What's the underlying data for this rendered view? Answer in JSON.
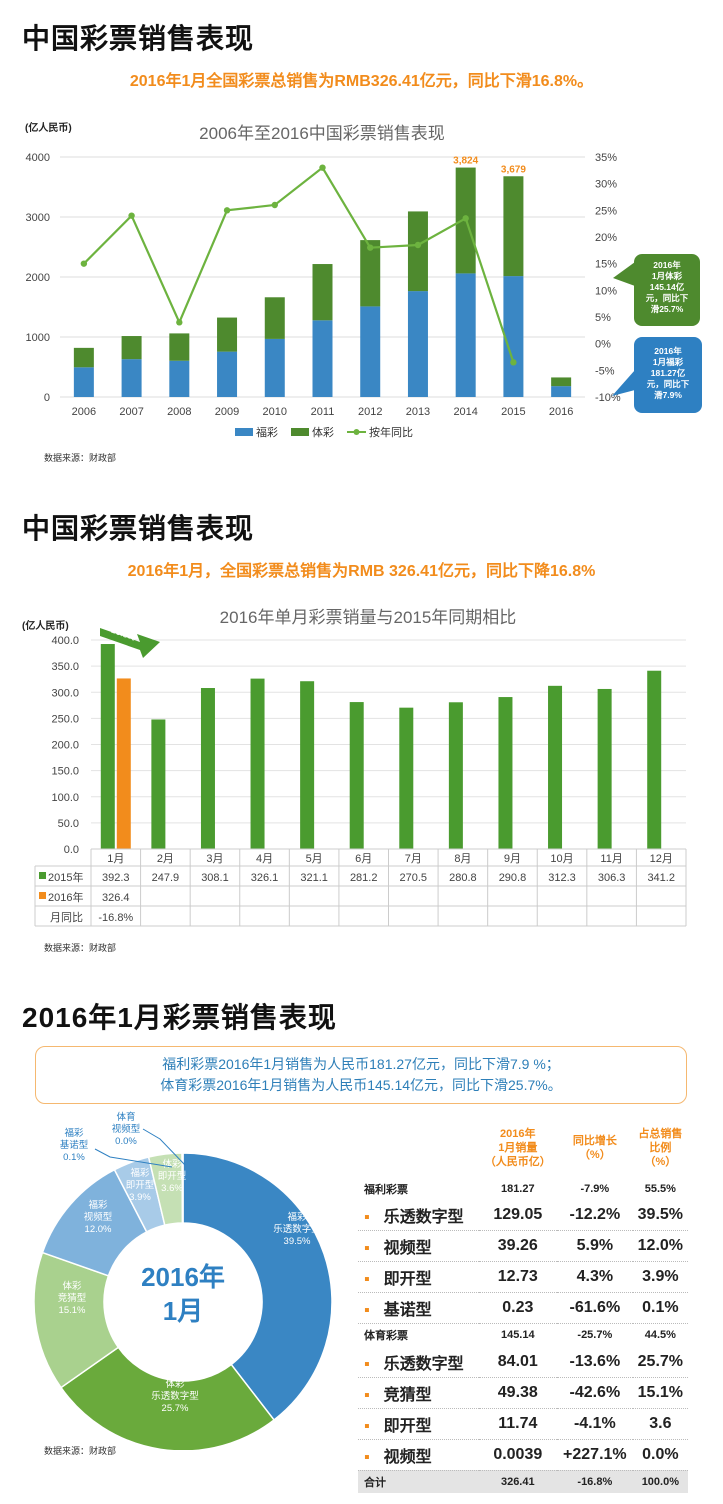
{
  "section1": {
    "title": "中国彩票销售表现",
    "subtitle": "2016年1月全国彩票总销售为RMB326.41亿元，同比下滑16.8%。",
    "source": "数据来源：财政部"
  },
  "section2": {
    "title": "中国彩票销售表现",
    "subtitle": "2016年1月，全国彩票总销售为RMB 326.41亿元，同比下降16.8%",
    "source": "数据来源：财政部"
  },
  "section3": {
    "title": "2016年1月彩票销售表现",
    "summary_line1": "福利彩票2016年1月销售为人民币181.27亿元，同比下滑7.9 %；",
    "summary_line2": "体育彩票2016年1月销售为人民币145.14亿元，同比下滑25.7%。",
    "source": "数据来源：财政部",
    "center_label_1": "2016年",
    "center_label_2": "1月"
  },
  "colors": {
    "fucai": "#3a87c4",
    "ticai": "#4e8a2e",
    "line": "#6db33f",
    "orange": "#f28c1c",
    "bar_green": "#4a9b2f"
  },
  "chart_data": [
    {
      "type": "bar",
      "stacked": true,
      "title": "2006年至2016中国彩票销售表现",
      "ylabel": "(亿人民币)",
      "categories": [
        "2006",
        "2007",
        "2008",
        "2009",
        "2010",
        "2011",
        "2012",
        "2013",
        "2014",
        "2015",
        "2016"
      ],
      "ylim": [
        0,
        4000
      ],
      "y_ticks": [
        "0",
        "1000",
        "2000",
        "3000",
        "4000"
      ],
      "y2lim": [
        -10,
        35
      ],
      "y2_ticks": [
        "-10%",
        "-5%",
        "0%",
        "5%",
        "10%",
        "15%",
        "20%",
        "25%",
        "30%",
        "35%"
      ],
      "series": [
        {
          "name": "福彩",
          "values": [
            495,
            631,
            604,
            756,
            968,
            1278,
            1510,
            1765,
            2060,
            2015,
            181
          ]
        },
        {
          "name": "体彩",
          "values": [
            324,
            385,
            456,
            568,
            694,
            938,
            1105,
            1328,
            1764,
            1664,
            145
          ]
        },
        {
          "name": "按年同比",
          "axis": "right",
          "values": [
            15.0,
            24.0,
            4.0,
            25.0,
            26.0,
            33.0,
            18.0,
            18.5,
            23.5,
            -3.5,
            null
          ]
        }
      ],
      "data_labels": [
        {
          "category": "2014",
          "text": "3,824"
        },
        {
          "category": "2015",
          "text": "3,679"
        }
      ],
      "callouts": [
        "2016年\n1月体彩\n145.14亿\n元，同比下\n滑25.7%",
        "2016年\n1月福彩\n181.27亿\n元，同比下\n滑7.9%"
      ],
      "legend_position": "bottom"
    },
    {
      "type": "bar",
      "title": "2016年单月彩票销量与2015年同期相比",
      "ylabel": "(亿人民币)",
      "categories": [
        "1月",
        "2月",
        "3月",
        "4月",
        "5月",
        "6月",
        "7月",
        "8月",
        "9月",
        "10月",
        "11月",
        "12月"
      ],
      "ylim": [
        0,
        400
      ],
      "y_ticks": [
        "0.0",
        "50.0",
        "100.0",
        "150.0",
        "200.0",
        "250.0",
        "300.0",
        "350.0",
        "400.0"
      ],
      "series": [
        {
          "name": "2015年",
          "values": [
            392.3,
            247.9,
            308.1,
            326.1,
            321.1,
            281.2,
            270.5,
            280.8,
            290.8,
            312.3,
            306.3,
            341.2
          ],
          "labels": [
            "392.3",
            "247.9",
            "308.1",
            "326.1",
            "321.1",
            "281.2",
            "270.5",
            "280.8",
            "290.8",
            "312.3",
            "306.3",
            "341.2"
          ]
        },
        {
          "name": "2016年",
          "values": [
            326.4,
            null,
            null,
            null,
            null,
            null,
            null,
            null,
            null,
            null,
            null,
            null
          ],
          "labels": [
            "326.4"
          ]
        }
      ],
      "yoy_row_label": "月同比",
      "yoy": [
        "-16.8%"
      ],
      "arrow_label": "-16.8%"
    },
    {
      "type": "pie",
      "donut": true,
      "slices": [
        {
          "label": "福彩\n乐透数字型\n39.5%",
          "value": 39.5,
          "color": "#3a87c4"
        },
        {
          "label": "体彩\n乐透数字型\n25.7%",
          "value": 25.7,
          "color": "#6aaa3c"
        },
        {
          "label": "体彩\n竞猜型\n15.1%",
          "value": 15.1,
          "color": "#a9d18e"
        },
        {
          "label": "福彩\n视频型\n12.0%",
          "value": 12.0,
          "color": "#7fb2dc"
        },
        {
          "label": "福彩\n即开型\n3.9%",
          "value": 3.9,
          "color": "#a8cbe8"
        },
        {
          "label": "体彩\n即开型\n3.6%",
          "value": 3.6,
          "color": "#c5e0b4"
        },
        {
          "label": "福彩\n基诺型\n0.1%",
          "value": 0.1,
          "color": "#3a87c4"
        },
        {
          "label": "体育\n视频型\n0.0%",
          "value": 0.0,
          "color": "#6aaa3c"
        }
      ]
    },
    {
      "type": "table",
      "headers": [
        "",
        "2016年\n1月销量\n（人民币亿）",
        "同比增长\n（%）",
        "占总销售\n比例\n（%）"
      ],
      "rows": [
        {
          "kind": "grp",
          "cells": [
            "福利彩票",
            "181.27",
            "-7.9%",
            "55.5%"
          ]
        },
        {
          "kind": "sub",
          "cells": [
            "乐透数字型",
            "129.05",
            "-12.2%",
            "39.5%"
          ]
        },
        {
          "kind": "sub",
          "cells": [
            "视频型",
            "39.26",
            "5.9%",
            "12.0%"
          ]
        },
        {
          "kind": "sub",
          "cells": [
            "即开型",
            "12.73",
            "4.3%",
            "3.9%"
          ]
        },
        {
          "kind": "sub",
          "cells": [
            "基诺型",
            "0.23",
            "-61.6%",
            "0.1%"
          ]
        },
        {
          "kind": "grp",
          "cells": [
            "体育彩票",
            "145.14",
            "-25.7%",
            "44.5%"
          ]
        },
        {
          "kind": "sub",
          "cells": [
            "乐透数字型",
            "84.01",
            "-13.6%",
            "25.7%"
          ]
        },
        {
          "kind": "sub",
          "cells": [
            "竞猜型",
            "49.38",
            "-42.6%",
            "15.1%"
          ]
        },
        {
          "kind": "sub",
          "cells": [
            "即开型",
            "11.74",
            "-4.1%",
            "3.6"
          ]
        },
        {
          "kind": "sub",
          "cells": [
            "视频型",
            "0.0039",
            "+227.1%",
            "0.0%"
          ]
        },
        {
          "kind": "total",
          "cells": [
            "合计",
            "326.41",
            "-16.8%",
            "100.0%"
          ]
        }
      ]
    }
  ]
}
